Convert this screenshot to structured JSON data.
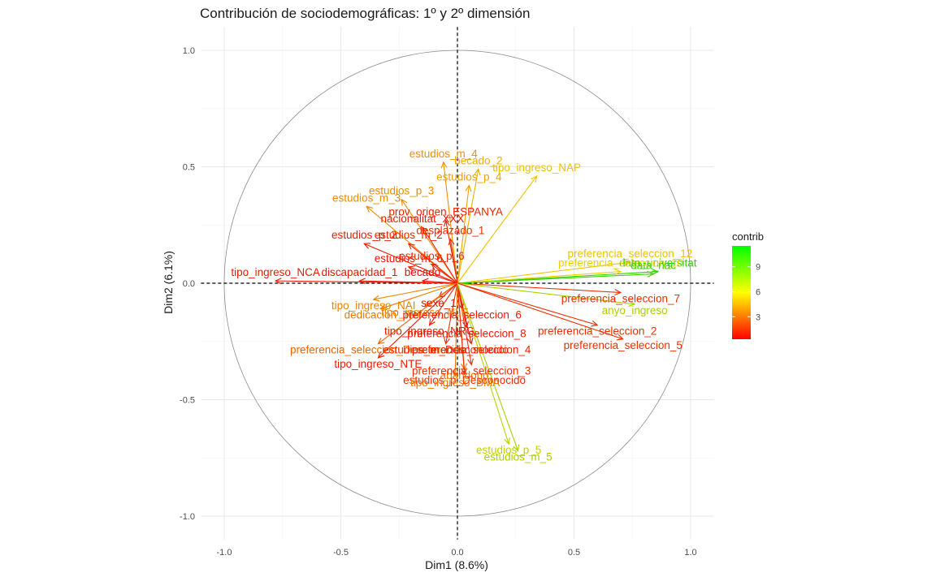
{
  "chart_data": {
    "type": "scatter",
    "subtype": "pca-variable-correlation-circle",
    "title": "Contribución de sociodemográficas: 1º y 2º dimensión",
    "xlabel": "Dim1 (8.6%)",
    "ylabel": "Dim2 (6.1%)",
    "xlim": [
      -1.1,
      1.1
    ],
    "ylim": [
      -1.1,
      1.1
    ],
    "xticks": [
      -1.0,
      -0.5,
      0.0,
      0.5,
      1.0
    ],
    "yticks": [
      -1.0,
      -0.5,
      0.0,
      0.5,
      1.0
    ],
    "xtick_labels": [
      "-1.0",
      "-0.5",
      "0.0",
      "0.5",
      "1.0"
    ],
    "ytick_labels": [
      "-1.0",
      "-0.5",
      "0.0",
      "0.5",
      "1.0"
    ],
    "grid": true,
    "unit_circle": true,
    "legend": {
      "title": "contrib",
      "position": "right",
      "ticks": [
        3,
        6,
        9
      ],
      "tick_labels": [
        "3",
        "6",
        "9"
      ],
      "range": [
        0.3,
        11.5
      ],
      "colors": [
        "#ff0000",
        "#ffff00",
        "#00ff00"
      ]
    },
    "variables": [
      {
        "name": "estudios_m_4",
        "x": -0.06,
        "y": 0.52,
        "contrib": 4.2
      },
      {
        "name": "becado_2",
        "x": 0.09,
        "y": 0.49,
        "contrib": 5.0
      },
      {
        "name": "estudios_p_4",
        "x": 0.05,
        "y": 0.42,
        "contrib": 4.6
      },
      {
        "name": "tipo_ingreso_NAP",
        "x": 0.34,
        "y": 0.46,
        "contrib": 5.5
      },
      {
        "name": "estudios_p_3",
        "x": -0.24,
        "y": 0.36,
        "contrib": 4.0
      },
      {
        "name": "estudios_m_3",
        "x": -0.39,
        "y": 0.33,
        "contrib": 4.0
      },
      {
        "name": "prov_origen_ESPANYA",
        "x": -0.05,
        "y": 0.27,
        "contrib": 1.2
      },
      {
        "name": "nacionalitat_XXX",
        "x": -0.15,
        "y": 0.24,
        "contrib": 1.0
      },
      {
        "name": "desplazado_1",
        "x": -0.03,
        "y": 0.19,
        "contrib": 1.5
      },
      {
        "name": "estudios_p_2",
        "x": -0.4,
        "y": 0.17,
        "contrib": 1.0
      },
      {
        "name": "estudios_m_2",
        "x": -0.21,
        "y": 0.17,
        "contrib": 1.2
      },
      {
        "name": "preferencia_seleccion_12",
        "x": 0.74,
        "y": 0.09,
        "contrib": 5.5
      },
      {
        "name": "data_universitat",
        "x": 0.86,
        "y": 0.05,
        "contrib": 10.5
      },
      {
        "name": "estudios_m_6",
        "x": -0.21,
        "y": 0.07,
        "contrib": 1.0
      },
      {
        "name": "estudios_p_6",
        "x": -0.11,
        "y": 0.08,
        "contrib": 1.5
      },
      {
        "name": "preferencia_seleccion_10",
        "x": 0.7,
        "y": 0.05,
        "contrib": 6.0
      },
      {
        "name": "data_nac",
        "x": 0.84,
        "y": 0.04,
        "contrib": 10.0
      },
      {
        "name": "tipo_ingreso_NCA",
        "x": -0.78,
        "y": 0.01,
        "contrib": 1.0
      },
      {
        "name": "discapacidad_1",
        "x": -0.42,
        "y": 0.01,
        "contrib": 0.8
      },
      {
        "name": "becado",
        "x": -0.15,
        "y": 0.01,
        "contrib": 0.6
      },
      {
        "name": "preferencia_seleccion_7",
        "x": 0.7,
        "y": -0.04,
        "contrib": 1.5
      },
      {
        "name": "tipo_ingreso_NAI",
        "x": -0.36,
        "y": -0.07,
        "contrib": 3.8
      },
      {
        "name": "sexe_1",
        "x": -0.08,
        "y": -0.06,
        "contrib": 0.8
      },
      {
        "name": "anyo_ingreso",
        "x": 0.76,
        "y": -0.09,
        "contrib": 7.5
      },
      {
        "name": "dedicacion_TP",
        "x": -0.33,
        "y": -0.11,
        "contrib": 3.5
      },
      {
        "name": "tipo_ingreso_NLE",
        "x": -0.14,
        "y": -0.1,
        "contrib": 3.8
      },
      {
        "name": "preferencia_seleccion_6",
        "x": 0.02,
        "y": -0.11,
        "contrib": 1.0
      },
      {
        "name": "tipo_ingreso_NRG",
        "x": -0.12,
        "y": -0.18,
        "contrib": 1.0
      },
      {
        "name": "preferencia_seleccion_8",
        "x": 0.04,
        "y": -0.19,
        "contrib": 1.0
      },
      {
        "name": "preferencia_seleccion_2",
        "x": 0.6,
        "y": -0.18,
        "contrib": 1.5
      },
      {
        "name": "preferencia_seleccion_Desconocido",
        "x": -0.34,
        "y": -0.26,
        "contrib": 3.0
      },
      {
        "name": "estudios_m_Desconocido",
        "x": -0.05,
        "y": -0.26,
        "contrib": 1.5
      },
      {
        "name": "preferencia_seleccion_4",
        "x": 0.06,
        "y": -0.26,
        "contrib": 1.2
      },
      {
        "name": "preferencia_seleccion_5",
        "x": 0.71,
        "y": -0.24,
        "contrib": 1.5
      },
      {
        "name": "tipo_ingreso_NTE",
        "x": -0.34,
        "y": -0.32,
        "contrib": 1.0
      },
      {
        "name": "abandono",
        "x": 0.03,
        "y": -0.37,
        "contrib": 3.5
      },
      {
        "name": "preferencia_seleccion_3",
        "x": 0.06,
        "y": -0.35,
        "contrib": 1.5
      },
      {
        "name": "estudios_p_Desconocido",
        "x": 0.03,
        "y": -0.39,
        "contrib": 1.5
      },
      {
        "name": "tipo_ingreso_BMA",
        "x": -0.01,
        "y": -0.4,
        "contrib": 3.5
      },
      {
        "name": "estudios_p_5",
        "x": 0.22,
        "y": -0.69,
        "contrib": 7.0
      },
      {
        "name": "estudios_m_5",
        "x": 0.26,
        "y": -0.72,
        "contrib": 7.5
      }
    ]
  }
}
